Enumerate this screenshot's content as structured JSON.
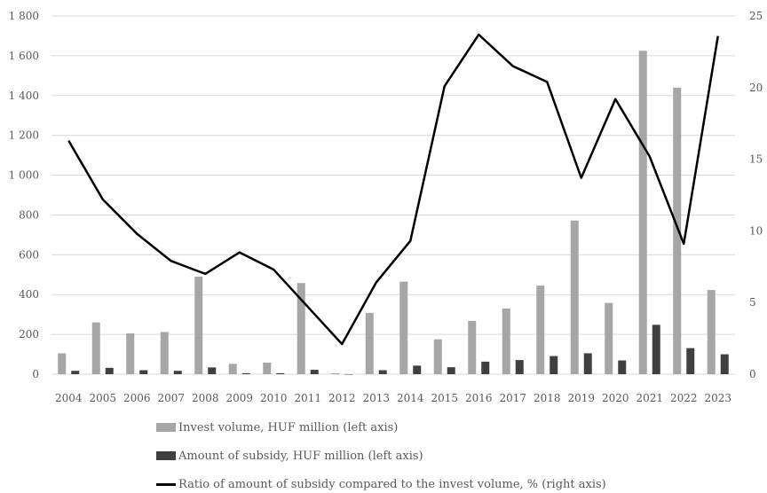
{
  "chart_data": {
    "type": "bar",
    "categories": [
      "2004",
      "2005",
      "2006",
      "2007",
      "2008",
      "2009",
      "2010",
      "2011",
      "2012",
      "2013",
      "2014",
      "2015",
      "2016",
      "2017",
      "2018",
      "2019",
      "2020",
      "2021",
      "2022",
      "2023"
    ],
    "series": [
      {
        "name": "Invest volume, HUF million (left axis)",
        "kind": "bar",
        "axis": "left",
        "color": "#a6a6a6",
        "values": [
          105,
          260,
          205,
          212,
          490,
          52,
          58,
          458,
          5,
          308,
          465,
          175,
          268,
          330,
          445,
          772,
          358,
          1625,
          1440,
          423
        ]
      },
      {
        "name": "Amount of subsidy, HUF million (left axis)",
        "kind": "bar",
        "axis": "left",
        "color": "#404040",
        "values": [
          17,
          32,
          20,
          17,
          34,
          5,
          5,
          22,
          0.1,
          20,
          43,
          35,
          63,
          71,
          91,
          105,
          69,
          248,
          131,
          100
        ]
      },
      {
        "name": "Ratio of amount of subsidy compared to the invest volume, % (right axis)",
        "kind": "line",
        "axis": "right",
        "color": "#000000",
        "values": [
          16.3,
          12.2,
          9.8,
          7.9,
          7.0,
          8.5,
          7.3,
          4.7,
          2.1,
          6.4,
          9.3,
          20.1,
          23.7,
          21.5,
          20.4,
          13.7,
          19.2,
          15.2,
          9.1,
          23.6
        ]
      }
    ],
    "y_left": {
      "lim": [
        0,
        1800
      ],
      "ticks": [
        "0",
        "200",
        "400",
        "600",
        "800",
        "1 000",
        "1 200",
        "1 400",
        "1 600",
        "1 800"
      ]
    },
    "y_right": {
      "lim": [
        0,
        25
      ],
      "ticks": [
        "0",
        "5",
        "10",
        "15",
        "20",
        "25"
      ]
    },
    "grid": true,
    "legend_position": "bottom"
  }
}
